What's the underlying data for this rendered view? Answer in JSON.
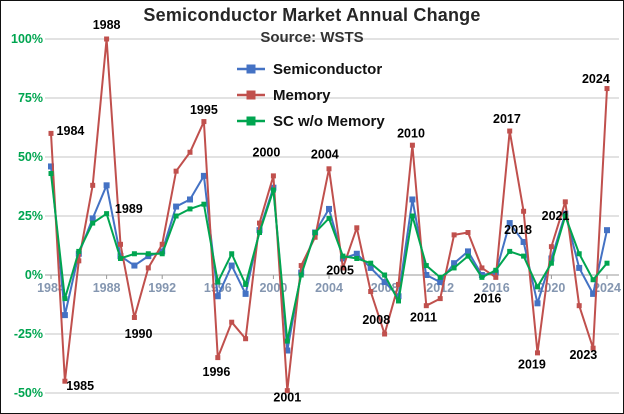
{
  "chart_data": {
    "type": "line",
    "title": "Semiconductor Market Annual Change",
    "subtitle": "Source: WSTS",
    "ylim": [
      -50,
      100
    ],
    "grid": true,
    "legend_position": "inside-top-center",
    "axis_colors": {
      "y": "#00a550",
      "x": "#8496b0"
    },
    "x": [
      1984,
      1985,
      1986,
      1987,
      1988,
      1989,
      1990,
      1991,
      1992,
      1993,
      1994,
      1995,
      1996,
      1997,
      1998,
      1999,
      2000,
      2001,
      2002,
      2003,
      2004,
      2005,
      2006,
      2007,
      2008,
      2009,
      2010,
      2011,
      2012,
      2013,
      2014,
      2015,
      2016,
      2017,
      2018,
      2019,
      2020,
      2021,
      2022,
      2023,
      2024
    ],
    "series": [
      {
        "name": "Semiconductor",
        "color": "#4472c4",
        "marker": "square",
        "marker_size": 6,
        "values": [
          46,
          -17,
          9,
          24,
          38,
          8,
          4,
          8,
          10,
          29,
          32,
          42,
          -9,
          4,
          -8,
          19,
          37,
          -32,
          1,
          18,
          28,
          7,
          9,
          3,
          -3,
          -9,
          32,
          0,
          -3,
          5,
          10,
          0,
          1,
          22,
          14,
          -12,
          7,
          26,
          3,
          -8,
          19
        ]
      },
      {
        "name": "Memory",
        "color": "#c0504d",
        "marker": "square",
        "marker_size": 5,
        "values": [
          60,
          -45,
          6,
          38,
          100,
          13,
          -18,
          3,
          13,
          44,
          52,
          65,
          -35,
          -20,
          -27,
          22,
          42,
          -49,
          4,
          16,
          45,
          3,
          20,
          -7,
          -25,
          -4,
          55,
          -13,
          -10,
          17,
          18,
          3,
          -1,
          61,
          27,
          -33,
          12,
          31,
          -13,
          -31,
          79
        ]
      },
      {
        "name": "SC w/o Memory",
        "color": "#00a550",
        "marker": "square",
        "marker_size": 5,
        "values": [
          43,
          -10,
          10,
          22,
          26,
          7,
          9,
          9,
          9,
          25,
          28,
          30,
          -3,
          9,
          -4,
          18,
          36,
          -28,
          0,
          18,
          24,
          8,
          7,
          5,
          0,
          -11,
          25,
          4,
          -1,
          3,
          8,
          -1,
          2,
          10,
          8,
          -5,
          5,
          25,
          9,
          -2,
          5
        ]
      }
    ],
    "yticks": [
      {
        "v": 100,
        "label": "100%"
      },
      {
        "v": 75,
        "label": "75%"
      },
      {
        "v": 50,
        "label": "50%"
      },
      {
        "v": 25,
        "label": "25%"
      },
      {
        "v": 0,
        "label": "0%"
      },
      {
        "v": -25,
        "label": "-25%"
      },
      {
        "v": -50,
        "label": "-50%"
      }
    ],
    "xticks": [
      {
        "year": 1984,
        "label": "1984"
      },
      {
        "year": 1988,
        "label": "1988"
      },
      {
        "year": 1992,
        "label": "1992"
      },
      {
        "year": 1996,
        "label": "1996"
      },
      {
        "year": 2000,
        "label": "2000"
      },
      {
        "year": 2004,
        "label": "2004"
      },
      {
        "year": 2008,
        "label": "2008"
      },
      {
        "year": 2012,
        "label": "2012"
      },
      {
        "year": 2016,
        "label": "2016"
      },
      {
        "year": 2020,
        "label": "2020"
      },
      {
        "year": 2024,
        "label": "2024"
      }
    ],
    "annotations": [
      {
        "text": "1984",
        "year": 1985.4,
        "v": 61
      },
      {
        "text": "1985",
        "year": 1986.1,
        "v": -47
      },
      {
        "text": "1988",
        "year": 1988.0,
        "v": 106
      },
      {
        "text": "1989",
        "year": 1989.6,
        "v": 28
      },
      {
        "text": "1990",
        "year": 1990.3,
        "v": -25
      },
      {
        "text": "1995",
        "year": 1995.0,
        "v": 70
      },
      {
        "text": "1996",
        "year": 1995.9,
        "v": -41
      },
      {
        "text": "2000",
        "year": 1999.5,
        "v": 52
      },
      {
        "text": "2001",
        "year": 2001.0,
        "v": -52
      },
      {
        "text": "2004",
        "year": 2003.7,
        "v": 51
      },
      {
        "text": "2005",
        "year": 2004.8,
        "v": 2
      },
      {
        "text": "2008",
        "year": 2007.4,
        "v": -19
      },
      {
        "text": "2010",
        "year": 2009.9,
        "v": 60
      },
      {
        "text": "2011",
        "year": 2010.8,
        "v": -18
      },
      {
        "text": "2016",
        "year": 2015.4,
        "v": -10
      },
      {
        "text": "2017",
        "year": 2016.8,
        "v": 66
      },
      {
        "text": "2018",
        "year": 2017.6,
        "v": 19
      },
      {
        "text": "2019",
        "year": 2018.6,
        "v": -38
      },
      {
        "text": "2021",
        "year": 2020.3,
        "v": 25
      },
      {
        "text": "2023",
        "year": 2022.3,
        "v": -34
      },
      {
        "text": "2024",
        "year": 2023.2,
        "v": 83
      }
    ]
  }
}
